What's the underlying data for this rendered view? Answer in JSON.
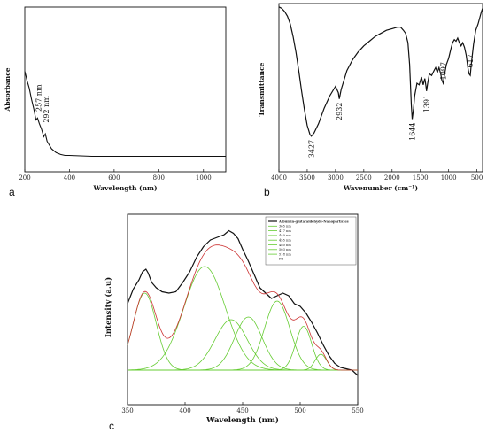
{
  "chart_data": [
    {
      "panel": "a",
      "type": "line",
      "xlabel": "Wavelength (nm)",
      "ylabel": "Absorbance",
      "xlim": [
        200,
        1100
      ],
      "xticks": [
        200,
        400,
        600,
        800,
        1000
      ],
      "annotations": [
        {
          "text": "257 nm",
          "x": 257,
          "y": 0.55
        },
        {
          "text": "292 nm",
          "x": 292,
          "y": 0.43
        }
      ],
      "series": [
        {
          "x": [
            200,
            205,
            210,
            215,
            220,
            230,
            240,
            250,
            257,
            265,
            275,
            285,
            292,
            300,
            320,
            340,
            360,
            380,
            400,
            450,
            500,
            600,
            700,
            800,
            900,
            1000,
            1100
          ],
          "y": [
            1.0,
            0.95,
            0.9,
            0.86,
            0.82,
            0.7,
            0.6,
            0.48,
            0.5,
            0.44,
            0.38,
            0.3,
            0.33,
            0.25,
            0.17,
            0.13,
            0.11,
            0.1,
            0.1,
            0.095,
            0.09,
            0.09,
            0.09,
            0.09,
            0.09,
            0.09,
            0.09
          ]
        }
      ]
    },
    {
      "panel": "b",
      "type": "line",
      "xlabel": "Wavenumber (cm⁻¹)",
      "ylabel": "Transmittance",
      "xlim": [
        4000,
        400
      ],
      "xticks": [
        4000,
        3500,
        3000,
        2500,
        2000,
        1500,
        1000,
        500
      ],
      "annotations": [
        {
          "text": "3427",
          "x": 3427
        },
        {
          "text": "2932",
          "x": 2932
        },
        {
          "text": "1644",
          "x": 1644
        },
        {
          "text": "1391",
          "x": 1391
        },
        {
          "text": "1097",
          "x": 1097
        },
        {
          "text": "617",
          "x": 617
        }
      ],
      "series": [
        {
          "x": [
            4000,
            3950,
            3900,
            3850,
            3800,
            3750,
            3700,
            3650,
            3600,
            3550,
            3500,
            3450,
            3427,
            3380,
            3300,
            3200,
            3100,
            3000,
            2950,
            2932,
            2900,
            2850,
            2800,
            2700,
            2600,
            2500,
            2400,
            2300,
            2200,
            2100,
            2000,
            1900,
            1850,
            1800,
            1760,
            1720,
            1690,
            1660,
            1644,
            1620,
            1600,
            1560,
            1520,
            1480,
            1450,
            1420,
            1400,
            1391,
            1370,
            1340,
            1300,
            1260,
            1230,
            1200,
            1170,
            1140,
            1120,
            1097,
            1070,
            1040,
            1000,
            960,
            930,
            900,
            870,
            840,
            810,
            780,
            750,
            720,
            690,
            660,
            640,
            617,
            600,
            560,
            520,
            480,
            450,
            420,
            400
          ],
          "y": [
            99,
            98,
            96,
            93,
            88,
            80,
            70,
            58,
            45,
            33,
            23,
            17,
            16,
            18,
            24,
            34,
            42,
            48,
            44,
            40,
            46,
            52,
            58,
            65,
            70,
            74,
            77,
            80,
            82,
            84,
            85,
            86,
            86,
            84,
            82,
            76,
            62,
            36,
            27,
            34,
            42,
            50,
            49,
            54,
            49,
            53,
            48,
            45,
            50,
            56,
            55,
            58,
            60,
            57,
            60,
            56,
            52,
            50,
            56,
            62,
            66,
            72,
            76,
            78,
            77,
            79,
            76,
            74,
            76,
            73,
            68,
            60,
            56,
            55,
            62,
            75,
            84,
            88,
            92,
            96,
            98
          ]
        }
      ]
    },
    {
      "panel": "c",
      "type": "line",
      "xlabel": "Wavelength (nm)",
      "ylabel": "Intensity (a.u)",
      "xlim": [
        350,
        550
      ],
      "xticks": [
        350,
        400,
        450,
        500,
        550
      ],
      "ylim": [
        0,
        1
      ],
      "legend_position": "top-right",
      "series": [
        {
          "name": "Albumin-glutaraldehyde-Nanoparticles",
          "color": "#111111",
          "x": [
            350,
            355,
            360,
            363,
            366,
            368,
            371,
            375,
            380,
            386,
            392,
            398,
            404,
            410,
            416,
            422,
            428,
            434,
            438,
            442,
            446,
            450,
            455,
            460,
            465,
            470,
            475,
            480,
            485,
            490,
            495,
            500,
            505,
            510,
            515,
            520,
            525,
            530,
            535,
            540,
            545,
            550
          ],
          "y": [
            0.5,
            0.61,
            0.68,
            0.74,
            0.76,
            0.73,
            0.66,
            0.62,
            0.59,
            0.58,
            0.59,
            0.66,
            0.74,
            0.85,
            0.93,
            0.98,
            1.0,
            1.02,
            1.05,
            1.03,
            0.99,
            0.91,
            0.82,
            0.72,
            0.62,
            0.58,
            0.54,
            0.56,
            0.58,
            0.56,
            0.5,
            0.48,
            0.43,
            0.36,
            0.28,
            0.19,
            0.11,
            0.05,
            0.02,
            0.01,
            0.0,
            -0.04
          ]
        },
        {
          "name": "365 nm",
          "color": "#66cc33",
          "gauss": {
            "center": 365,
            "amplitude": 0.58,
            "sigma": 10
          }
        },
        {
          "name": "417 nm",
          "color": "#66cc33",
          "gauss": {
            "center": 417,
            "amplitude": 0.78,
            "sigma": 18
          }
        },
        {
          "name": "440 nm",
          "color": "#66cc33",
          "gauss": {
            "center": 440,
            "amplitude": 0.38,
            "sigma": 14
          }
        },
        {
          "name": "455 nm",
          "color": "#66cc33",
          "gauss": {
            "center": 455,
            "amplitude": 0.4,
            "sigma": 12
          }
        },
        {
          "name": "480 nm",
          "color": "#66cc33",
          "gauss": {
            "center": 480,
            "amplitude": 0.52,
            "sigma": 11
          }
        },
        {
          "name": "503 nm",
          "color": "#66cc33",
          "gauss": {
            "center": 503,
            "amplitude": 0.33,
            "sigma": 7
          }
        },
        {
          "name": "518 nm",
          "color": "#66cc33",
          "gauss": {
            "center": 518,
            "amplitude": 0.12,
            "sigma": 5
          }
        },
        {
          "name": "Fit",
          "color": "#cc3333",
          "sum_of_components": true
        }
      ]
    }
  ],
  "panel_labels": {
    "a": "a",
    "b": "b",
    "c": "c"
  }
}
